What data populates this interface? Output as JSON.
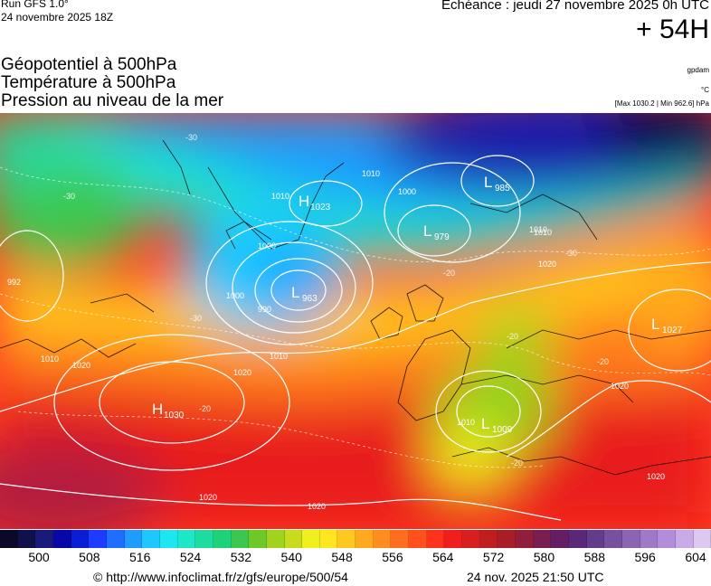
{
  "header": {
    "run_title": "Run GFS 1.0°",
    "run_date": "24 novembre 2025 18Z",
    "valid_time": "Echéance : jeudi 27 novembre 2025 0h UTC",
    "lead_time": "+ 54H"
  },
  "parameters": {
    "geopotential": "Géopotentiel à 500hPa",
    "temperature": "Température à 500hPa",
    "pressure": "Pression au niveau de la mer"
  },
  "units": {
    "geopotential": "gpdam",
    "temperature": "°C",
    "pressure": "[Max 1030.2 | Min 962.6] hPa"
  },
  "pressure_centers": [
    {
      "type": "H",
      "value": "1023"
    },
    {
      "type": "L",
      "value": "985"
    },
    {
      "type": "L",
      "value": "979"
    },
    {
      "type": "L",
      "value": "963"
    },
    {
      "type": "H",
      "value": "1030"
    },
    {
      "type": "L",
      "value": "1027"
    },
    {
      "type": "L",
      "value": "1009"
    }
  ],
  "isobar_labels": [
    "1010",
    "1000",
    "1010",
    "1000",
    "1010",
    "990",
    "1000",
    "1010",
    "1020",
    "1020",
    "1010",
    "1020",
    "1020",
    "1020",
    "1010",
    "1020",
    "1010",
    "1020",
    "992"
  ],
  "temperature_labels": [
    "-30",
    "-30",
    "-20",
    "-20",
    "-30",
    "-30",
    "-20",
    "-20",
    "-20"
  ],
  "colorbar": {
    "tick_labels": [
      "500",
      "508",
      "516",
      "524",
      "532",
      "540",
      "548",
      "556",
      "564",
      "572",
      "580",
      "588",
      "596",
      "604"
    ],
    "colors": [
      "#0a0a28",
      "#10104a",
      "#1a1a78",
      "#0808a8",
      "#0a1ed8",
      "#1e3cff",
      "#1e6eff",
      "#1e9cff",
      "#1ec8ff",
      "#1ee6f0",
      "#1ee6c8",
      "#1edca0",
      "#1ed278",
      "#3cc850",
      "#6ec828",
      "#a0d21e",
      "#c8dc1e",
      "#f0f01e",
      "#ffe61e",
      "#ffc81e",
      "#ffaa1e",
      "#ff8c1e",
      "#ff6e1e",
      "#ff501e",
      "#ff321e",
      "#f01e1e",
      "#d81e1e",
      "#c01e1e",
      "#a81e28",
      "#901e3c",
      "#781e50",
      "#641e64",
      "#5a2878",
      "#643c8c",
      "#7850a0",
      "#8c64b4",
      "#a078c8",
      "#b48cdc",
      "#c8aae6",
      "#dcc8f0"
    ]
  },
  "footer": {
    "copyright": "© http://www.infoclimat.fr/z/gfs/europe/500/54",
    "timestamp": "24 nov. 2025 21:50 UTC"
  }
}
